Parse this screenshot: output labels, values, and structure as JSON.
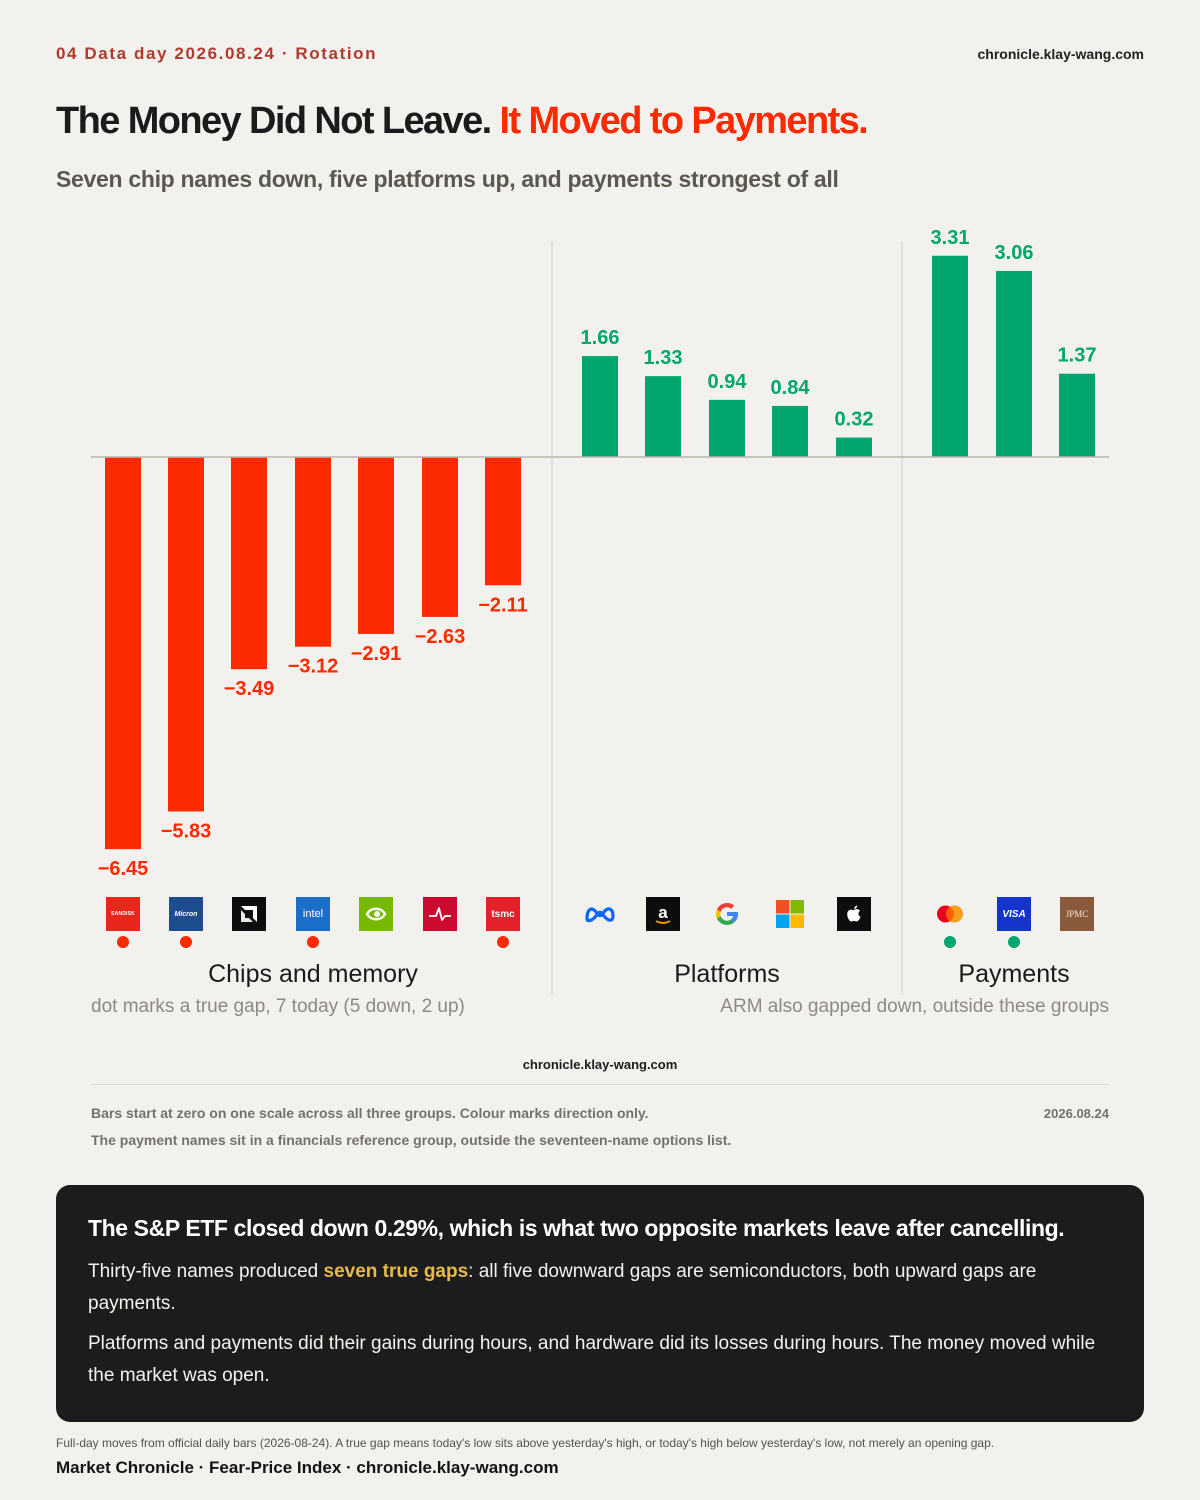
{
  "header": {
    "kicker": "04  Data day 2026.08.24 · Rotation",
    "site": "chronicle.klay-wang.com"
  },
  "headline": {
    "part1": "The Money Did Not Leave.",
    "part2": "It Moved to Payments."
  },
  "subtitle": "Seven chip names down, five platforms up, and payments strongest of all",
  "colors": {
    "down": "#fd2a00",
    "up": "#00a66e",
    "background": "#f3f1ed",
    "callout_bg": "#1c1c1c",
    "highlight": "#e7bb49"
  },
  "chart_data": {
    "type": "bar",
    "title": "",
    "xlabel": "",
    "ylabel": "",
    "ylim": [
      -6.45,
      3.31
    ],
    "grid": false,
    "legend": "none",
    "categories": [
      "SanDisk",
      "Micron",
      "AMD",
      "Intel",
      "Nvidia",
      "Broadcom",
      "TSMC",
      "Meta",
      "Amazon",
      "Google",
      "Microsoft",
      "Apple",
      "Mastercard",
      "Visa",
      "JPMC"
    ],
    "values": [
      -6.45,
      -5.83,
      -3.49,
      -3.12,
      -2.91,
      -2.63,
      -2.11,
      1.66,
      1.33,
      0.94,
      0.84,
      0.32,
      3.31,
      3.06,
      1.37
    ],
    "value_labels": [
      "−6.45",
      "−5.83",
      "−3.49",
      "−3.12",
      "−2.91",
      "−2.63",
      "−2.11",
      "1.66",
      "1.33",
      "0.94",
      "0.84",
      "0.32",
      "3.31",
      "3.06",
      "1.37"
    ],
    "true_gap": [
      true,
      true,
      false,
      true,
      false,
      false,
      true,
      false,
      false,
      false,
      false,
      false,
      true,
      true,
      false
    ],
    "groups": [
      {
        "label": "Chips and memory",
        "start": 0,
        "count": 7
      },
      {
        "label": "Platforms",
        "start": 7,
        "count": 5
      },
      {
        "label": "Payments",
        "start": 12,
        "count": 3
      }
    ]
  },
  "logos": [
    {
      "name": "sandisk-logo",
      "text": "SanDisk",
      "bg": "#e8261c",
      "fg": "#ffffff"
    },
    {
      "name": "micron-logo",
      "text": "Micron",
      "bg": "#1d4d8f",
      "fg": "#ffffff"
    },
    {
      "name": "amd-logo",
      "text": "",
      "bg": "#0d0d0d",
      "fg": "#ffffff"
    },
    {
      "name": "intel-logo",
      "text": "intel",
      "bg": "#1b6fc9",
      "fg": "#ffffff"
    },
    {
      "name": "nvidia-logo",
      "text": "",
      "bg": "#76b900",
      "fg": "#ffffff"
    },
    {
      "name": "broadcom-logo",
      "text": "",
      "bg": "#cc092f",
      "fg": "#ffffff"
    },
    {
      "name": "tsmc-logo",
      "text": "tsmc",
      "bg": "#e4202b",
      "fg": "#ffffff"
    },
    {
      "name": "meta-logo",
      "text": "",
      "bg": "transparent",
      "fg": "#0866ff"
    },
    {
      "name": "amazon-logo",
      "text": "a",
      "bg": "#0d0d0d",
      "fg": "#ffffff"
    },
    {
      "name": "google-logo",
      "text": "G",
      "bg": "transparent",
      "fg": "#4285f4"
    },
    {
      "name": "microsoft-logo",
      "text": "",
      "bg": "transparent",
      "fg": "#ffffff"
    },
    {
      "name": "apple-logo",
      "text": "",
      "bg": "#0d0d0d",
      "fg": "#ffffff"
    },
    {
      "name": "mastercard-logo",
      "text": "",
      "bg": "transparent",
      "fg": "#ffffff"
    },
    {
      "name": "visa-logo",
      "text": "VISA",
      "bg": "#1434cb",
      "fg": "#ffffff"
    },
    {
      "name": "jpmc-logo",
      "text": "JPMC",
      "bg": "#8a5a3c",
      "fg": "#f3e3d3"
    }
  ],
  "notes": {
    "left": "dot marks a true gap, 7 today (5 down, 2 up)",
    "right": "ARM also gapped down, outside these groups"
  },
  "footnotes": {
    "site": "chronicle.klay-wang.com",
    "line1": "Bars start at zero on one scale across all three groups. Colour marks direction only.",
    "line2": "The payment names sit in a financials reference group, outside the seventeen-name options list.",
    "date": "2026.08.24"
  },
  "callout": {
    "headline": "The S&P ETF closed down 0.29%, which is what two opposite markets leave after cancelling.",
    "p1_before": "Thirty-five names produced ",
    "p1_highlight": "seven true gaps",
    "p1_after": ": all five downward gaps are semiconductors, both upward gaps are payments.",
    "p2": "Platforms and payments did their gains during hours, and hardware did its losses during hours. The money moved while the market was open."
  },
  "source": "Full-day moves from official daily bars (2026-08-24). A true gap means today's low sits above yesterday's high, or today's high below yesterday's low, not merely an opening gap.",
  "brand": "Market Chronicle · Fear-Price Index · chronicle.klay-wang.com"
}
